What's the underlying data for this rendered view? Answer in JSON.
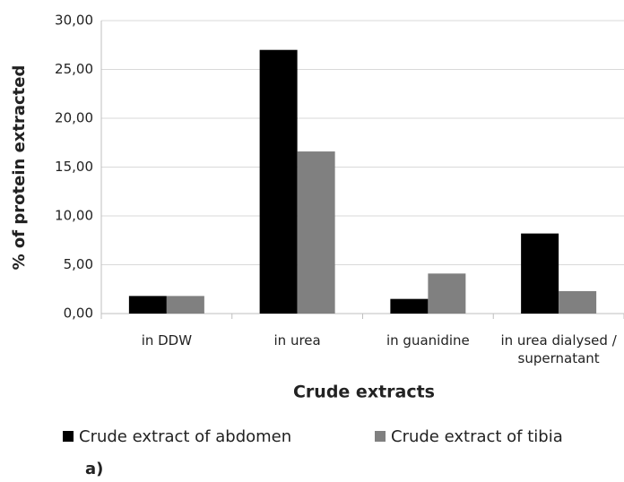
{
  "chart_data": {
    "type": "bar",
    "x_label": "Crude extracts",
    "y_label": "% of protein extracted",
    "annotation": "a)",
    "categories": [
      "in DDW",
      "in urea",
      "in guanidine",
      "in urea dialysed / supernatant"
    ],
    "series": [
      {
        "name": "Crude extract of abdomen",
        "color": "#000000",
        "values": [
          1.8,
          27.0,
          1.5,
          8.2
        ]
      },
      {
        "name": "Crude extract of tibia",
        "color": "#808080",
        "values": [
          1.8,
          16.6,
          4.1,
          2.3
        ]
      }
    ],
    "ylim": [
      0,
      30
    ],
    "yticks": [
      {
        "value": 0,
        "label": "0,00"
      },
      {
        "value": 5,
        "label": "5,00"
      },
      {
        "value": 10,
        "label": "10,00"
      },
      {
        "value": 15,
        "label": "15,00"
      },
      {
        "value": 20,
        "label": "20,00"
      },
      {
        "value": 25,
        "label": "25,00"
      },
      {
        "value": 30,
        "label": "30,00"
      }
    ],
    "grid": true,
    "legend": "bottom"
  }
}
